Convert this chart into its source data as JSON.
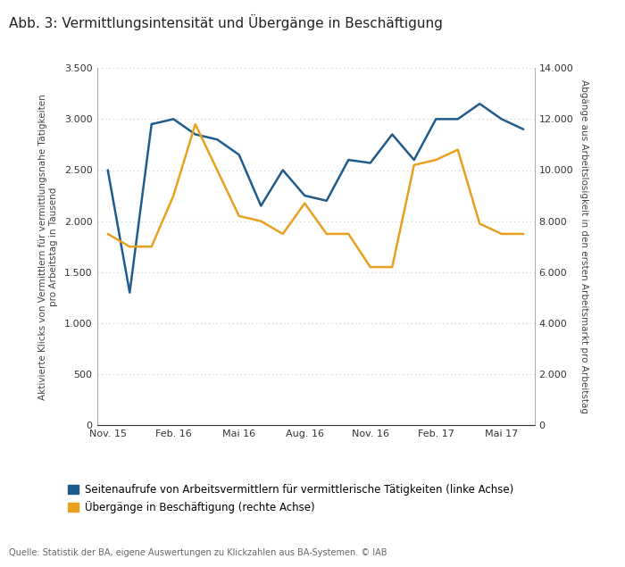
{
  "title": "Abb. 3: Vermittlungsintensität und Übergänge in Beschäftigung",
  "x_labels": [
    "Nov. 15",
    "Feb. 16",
    "Mai 16",
    "Aug. 16",
    "Nov. 16",
    "Feb. 17",
    "Mai 17"
  ],
  "blue_line": [
    2500,
    1300,
    2950,
    3000,
    2850,
    2800,
    2650,
    2150,
    2500,
    2250,
    2200,
    2600,
    2570,
    2850,
    2600,
    3000,
    3000,
    3150,
    3000,
    2900
  ],
  "orange_line": [
    7500,
    7000,
    7000,
    9000,
    11800,
    10000,
    8200,
    8000,
    7500,
    8700,
    7500,
    7500,
    6200,
    6200,
    10200,
    10400,
    10800,
    7900,
    7500,
    7500
  ],
  "blue_color": "#1F5C8B",
  "orange_color": "#E8A020",
  "left_ylabel": "Aktivierte Klicks von Vermittlern für vermittlungsnahe Tätigkeiten\npro Arbeitstag in Tausend",
  "right_ylabel": "Abgänge aus Arbeitslosigkeit in den ersten Arbeitsmarkt pro Arbeitstag",
  "left_ylim": [
    0,
    3500
  ],
  "right_ylim": [
    0,
    14000
  ],
  "left_yticks": [
    0,
    500,
    1000,
    1500,
    2000,
    2500,
    3000,
    3500
  ],
  "right_yticks": [
    0,
    2000,
    4000,
    6000,
    8000,
    10000,
    12000,
    14000
  ],
  "legend_blue": "Seitenaufrufe von Arbeitsvermittlern für vermittlerische Tätigkeiten (linke Achse)",
  "legend_orange": "Übergänge in Beschäftigung (rechte Achse)",
  "source_text": "Quelle: Statistik der BA, eigene Auswertungen zu Klickzahlen aus BA-Systemen. © IAB",
  "background_color": "#ffffff",
  "grid_color": "#cccccc",
  "n_points": 20,
  "xtick_indices": [
    0,
    3,
    6,
    9,
    12,
    15,
    18
  ]
}
